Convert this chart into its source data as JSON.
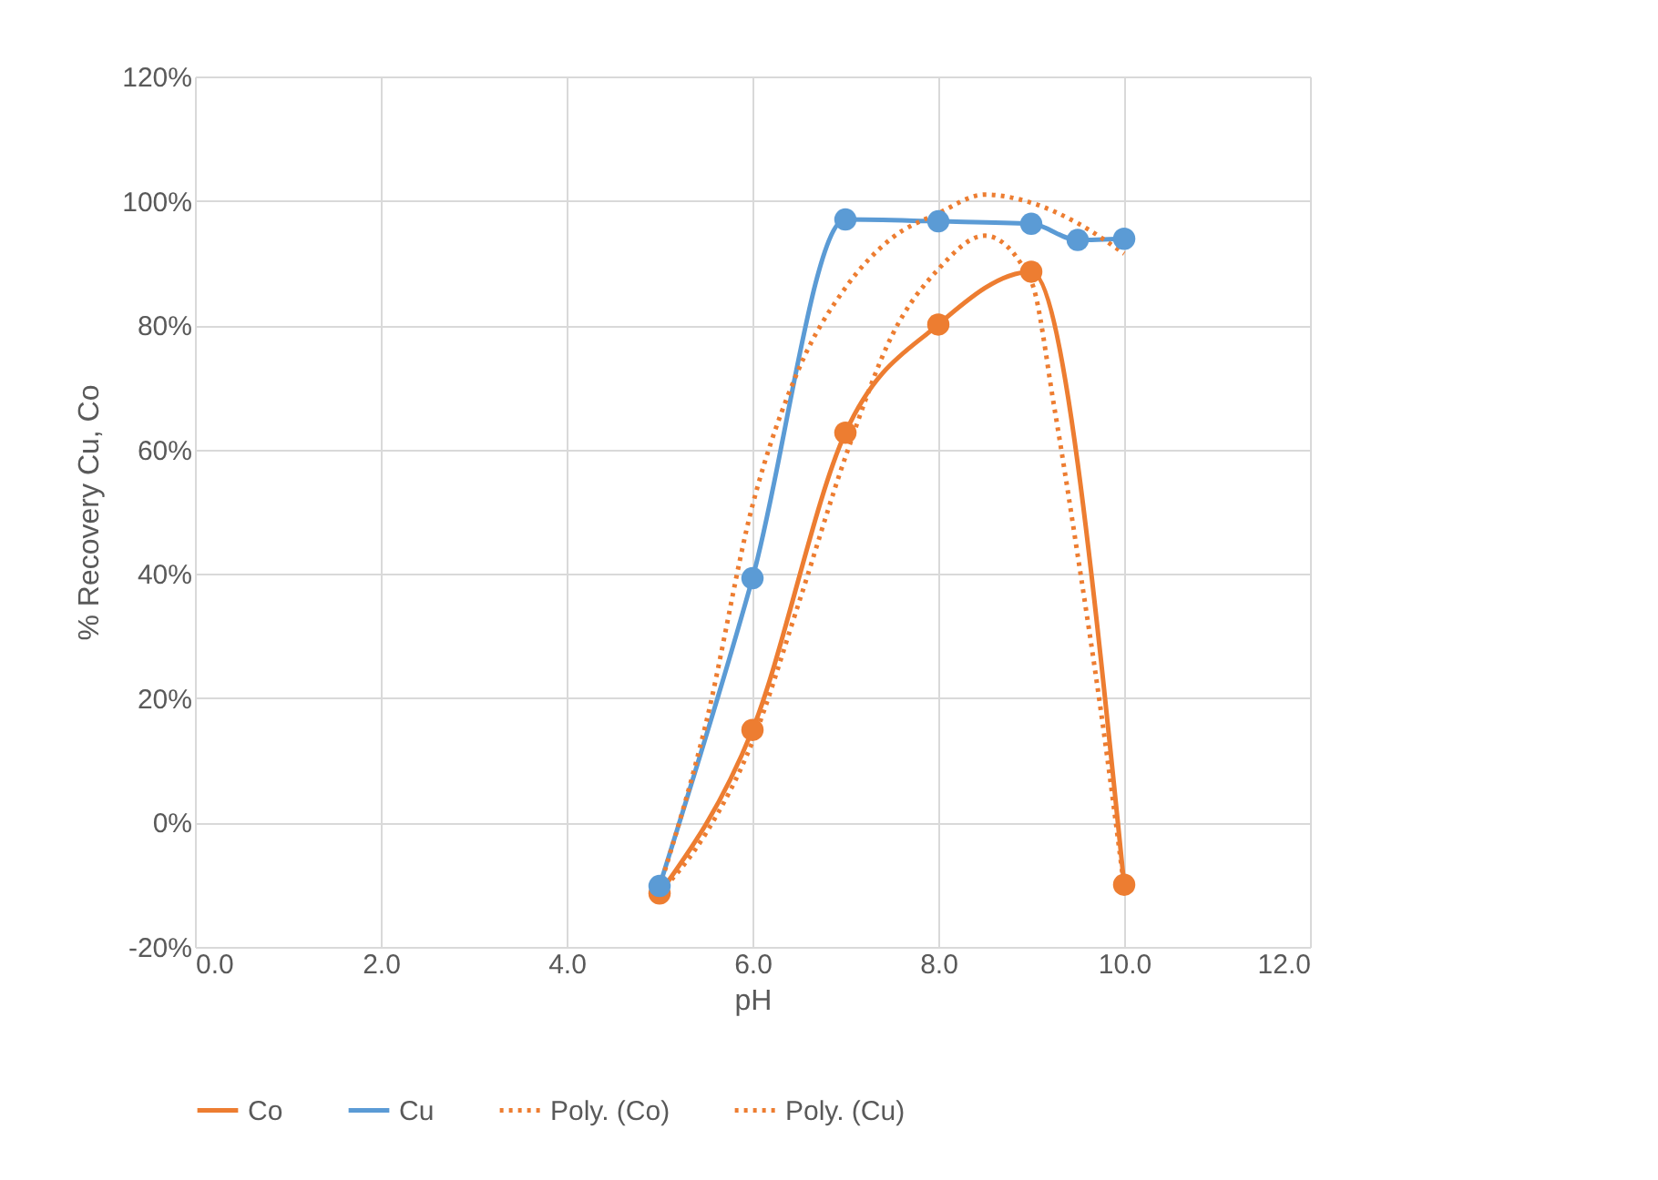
{
  "chart_data": {
    "type": "line",
    "xlabel": "pH",
    "ylabel": "% Recovery Cu, Co",
    "xlim": [
      0,
      12
    ],
    "xticks": [
      {
        "value": 0,
        "label": "0.0"
      },
      {
        "value": 2,
        "label": "2.0"
      },
      {
        "value": 4,
        "label": "4.0"
      },
      {
        "value": 6,
        "label": "6.0"
      },
      {
        "value": 8,
        "label": "8.0"
      },
      {
        "value": 10,
        "label": "10.0"
      },
      {
        "value": 12,
        "label": "12.0"
      }
    ],
    "ylim": [
      -20,
      120
    ],
    "yticks": [
      {
        "value": -20,
        "label": "-20%"
      },
      {
        "value": 0,
        "label": "0%"
      },
      {
        "value": 20,
        "label": "20%"
      },
      {
        "value": 40,
        "label": "40%"
      },
      {
        "value": 60,
        "label": "60%"
      },
      {
        "value": 80,
        "label": "80%"
      },
      {
        "value": 100,
        "label": "100%"
      },
      {
        "value": 120,
        "label": "120%"
      }
    ],
    "grid": true,
    "legend": "bottom",
    "series": [
      {
        "name": "Co",
        "color": "#ed7d31",
        "marker": "circle",
        "line_style": "solid",
        "x": [
          5,
          6,
          7,
          8,
          9,
          10
        ],
        "values": [
          -11.4,
          14.9,
          62.7,
          80.1,
          88.6,
          -10
        ]
      },
      {
        "name": "Cu",
        "color": "#5b9bd5",
        "marker": "circle",
        "line_style": "solid",
        "x": [
          5,
          6,
          7,
          8,
          9,
          9.5,
          10
        ],
        "values": [
          -10.2,
          39.3,
          97,
          96.7,
          96.3,
          93.7,
          93.9
        ]
      },
      {
        "name": "Poly. (Co)",
        "color": "#ed7d31",
        "marker": "none",
        "line_style": "dotted",
        "x": [
          5,
          5.5,
          6,
          6.5,
          7,
          7.5,
          8,
          8.5,
          9,
          9.25,
          9.5,
          9.75,
          10
        ],
        "values": [
          -11.4,
          -1.7,
          13,
          35.4,
          58.8,
          78.3,
          89,
          94.4,
          87,
          66.6,
          43,
          17.9,
          -10.4
        ]
      },
      {
        "name": "Poly. (Cu)",
        "color": "#ed7d31",
        "marker": "none",
        "line_style": "dotted",
        "x": [
          5,
          5.5,
          6,
          6.5,
          7,
          7.5,
          8,
          8.5,
          9,
          9.5,
          10
        ],
        "values": [
          -10.5,
          16,
          51,
          73,
          86,
          94,
          98,
          101,
          99.7,
          96.4,
          91.5
        ]
      }
    ]
  }
}
